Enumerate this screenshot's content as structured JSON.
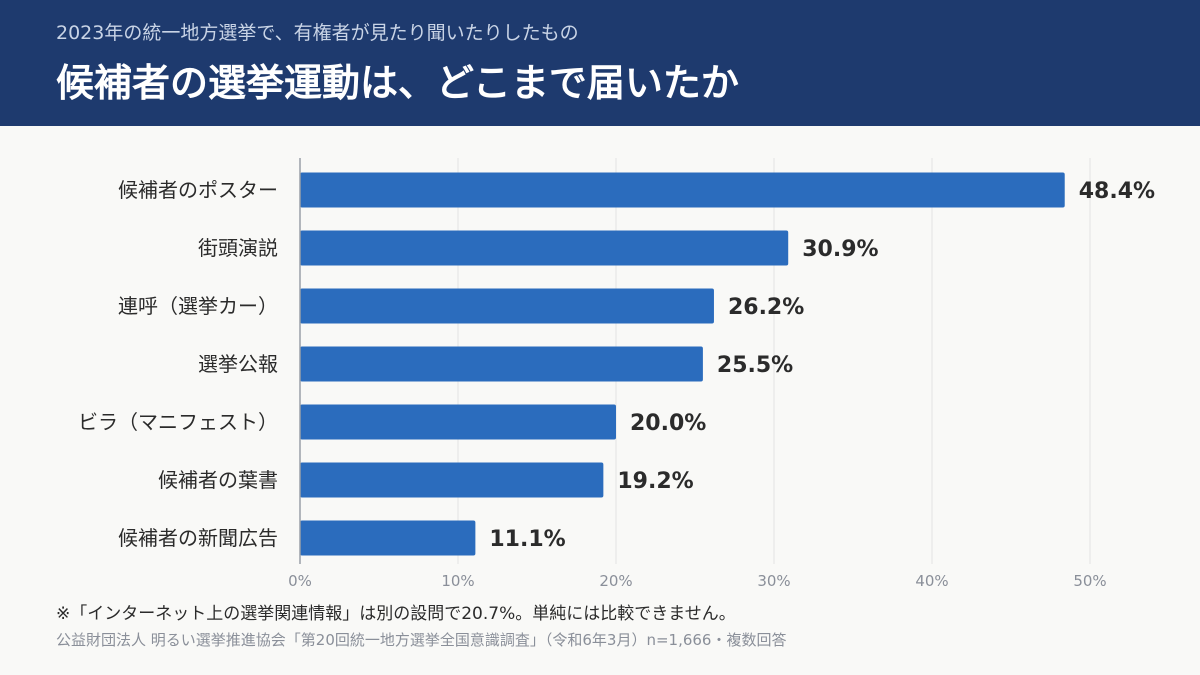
{
  "header": {
    "subtitle": "2023年の統一地方選挙で、有権者が見たり聞いたりしたもの",
    "title": "候補者の選挙運動は、どこまで届いたか"
  },
  "chart_data": {
    "type": "bar",
    "orientation": "horizontal",
    "categories": [
      "候補者のポスター",
      "街頭演説",
      "連呼（選挙カー）",
      "選挙公報",
      "ビラ（マニフェスト）",
      "候補者の葉書",
      "候補者の新聞広告"
    ],
    "values": [
      48.4,
      30.9,
      26.2,
      25.5,
      20.0,
      19.2,
      11.1
    ],
    "value_labels": [
      "48.4%",
      "30.9%",
      "26.2%",
      "25.5%",
      "20.0%",
      "19.2%",
      "11.1%"
    ],
    "xlim": [
      0,
      50
    ],
    "ticks": [
      0,
      10,
      20,
      30,
      40,
      50
    ],
    "tick_labels": [
      "0%",
      "10%",
      "20%",
      "30%",
      "40%",
      "50%"
    ],
    "grid": true,
    "bar_color": "#2b6cbd"
  },
  "footer": {
    "note": "※「インターネット上の選挙関連情報」は別の設問で20.7%。単純には比較できません。",
    "source": "公益財団法人 明るい選挙推進協会「第20回統一地方選挙全国意識調査」（令和6年3月）n=1,666・複数回答"
  }
}
